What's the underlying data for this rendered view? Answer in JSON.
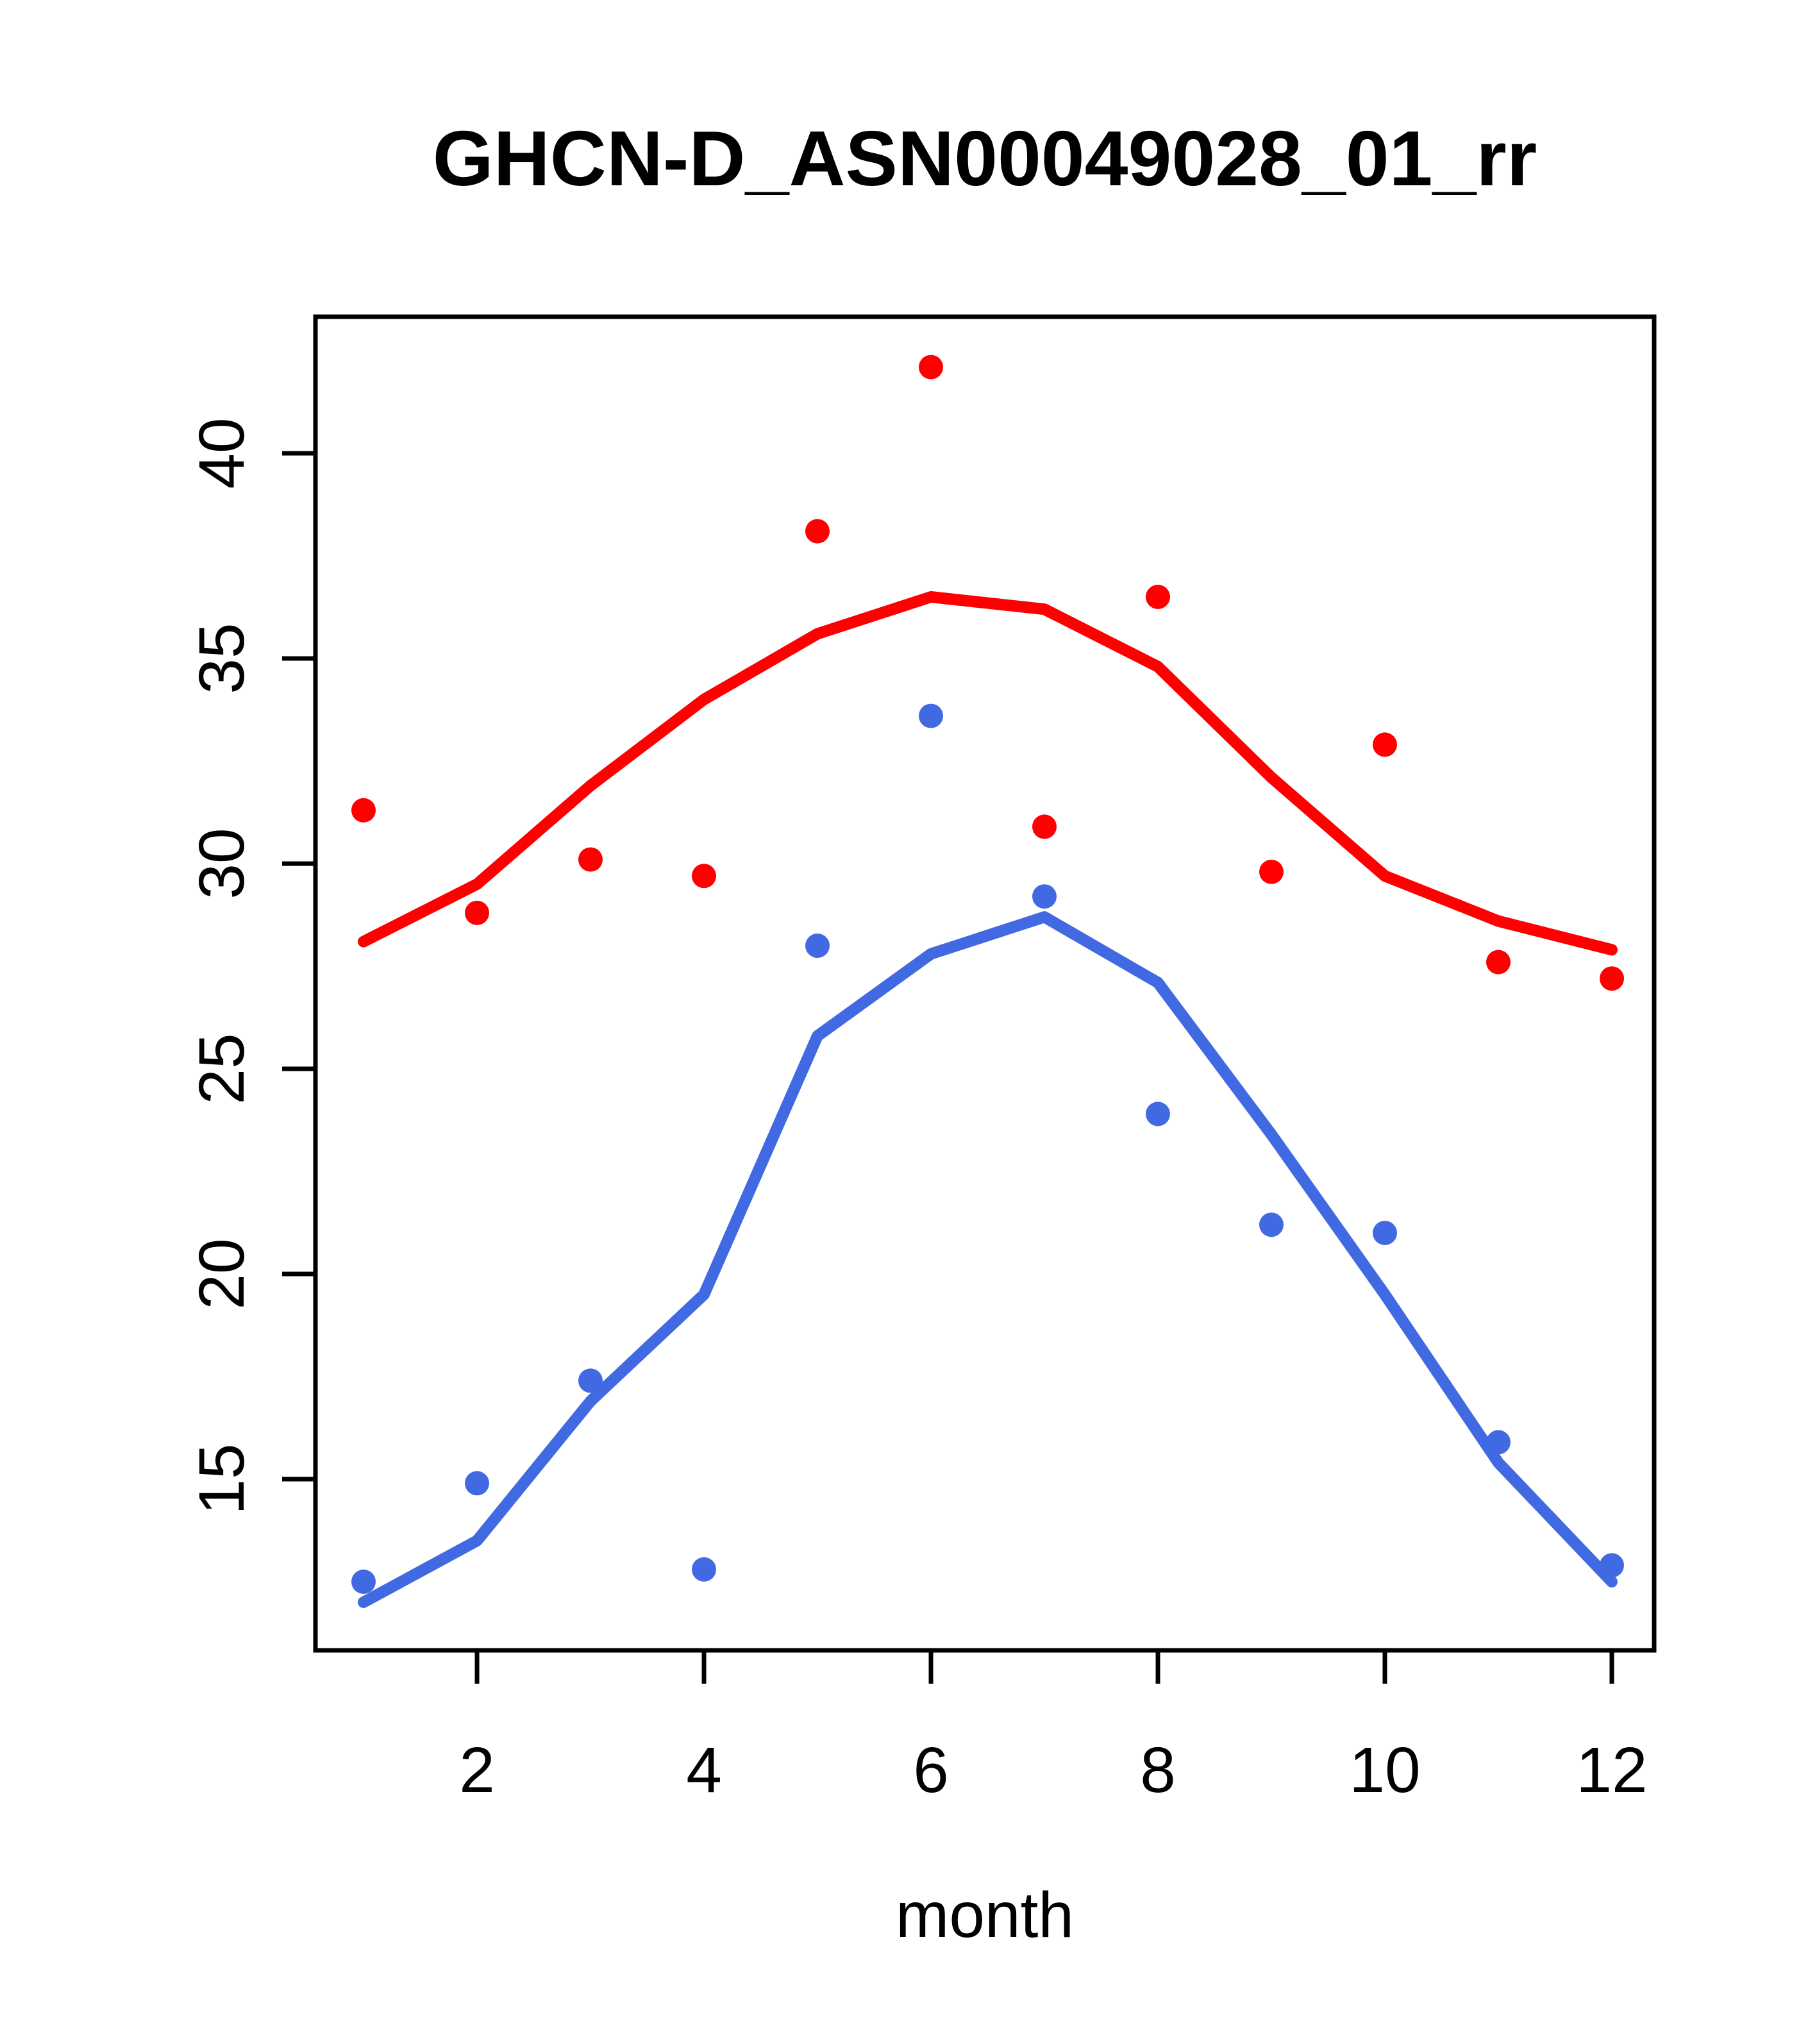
{
  "title": "GHCN-D_ASN00049028_01_rr",
  "colors": {
    "series_red": "#FF0000",
    "series_blue": "#4169E1",
    "axis": "#000000",
    "background": "#FFFFFF"
  },
  "chart_data": {
    "type": "scatter",
    "title": "GHCN-D_ASN00049028_01_rr",
    "xlabel": "month",
    "ylabel": "",
    "x": [
      1,
      2,
      3,
      4,
      5,
      6,
      7,
      8,
      9,
      10,
      11,
      12
    ],
    "x_ticks": [
      2,
      4,
      6,
      8,
      10,
      12
    ],
    "y_ticks": [
      15,
      20,
      25,
      30,
      35,
      40
    ],
    "xlim": [
      0.576,
      12.373
    ],
    "ylim": [
      10.828,
      43.328
    ],
    "grid": "off",
    "legend": "none",
    "marker": "filled-circle",
    "series": [
      {
        "name": "red-points",
        "kind": "scatter",
        "color": "#FF0000",
        "values": [
          31.3,
          28.8,
          30.1,
          29.7,
          38.1,
          42.1,
          30.9,
          36.5,
          29.8,
          32.9,
          27.6,
          27.2
        ]
      },
      {
        "name": "red-smooth-line",
        "kind": "line",
        "color": "#FF0000",
        "values": [
          28.1,
          29.5,
          31.9,
          34.0,
          35.6,
          36.5,
          36.2,
          34.8,
          32.1,
          29.7,
          28.6,
          27.9
        ]
      },
      {
        "name": "blue-points",
        "kind": "scatter",
        "color": "#4169E1",
        "values": [
          12.5,
          14.9,
          17.4,
          12.8,
          28.0,
          33.6,
          29.2,
          23.9,
          21.2,
          21.0,
          15.9,
          12.9
        ]
      },
      {
        "name": "blue-smooth-line",
        "kind": "line",
        "color": "#4169E1",
        "values": [
          12.0,
          13.5,
          16.9,
          19.5,
          25.8,
          27.8,
          28.7,
          27.1,
          23.4,
          19.5,
          15.4,
          12.5
        ]
      }
    ]
  }
}
